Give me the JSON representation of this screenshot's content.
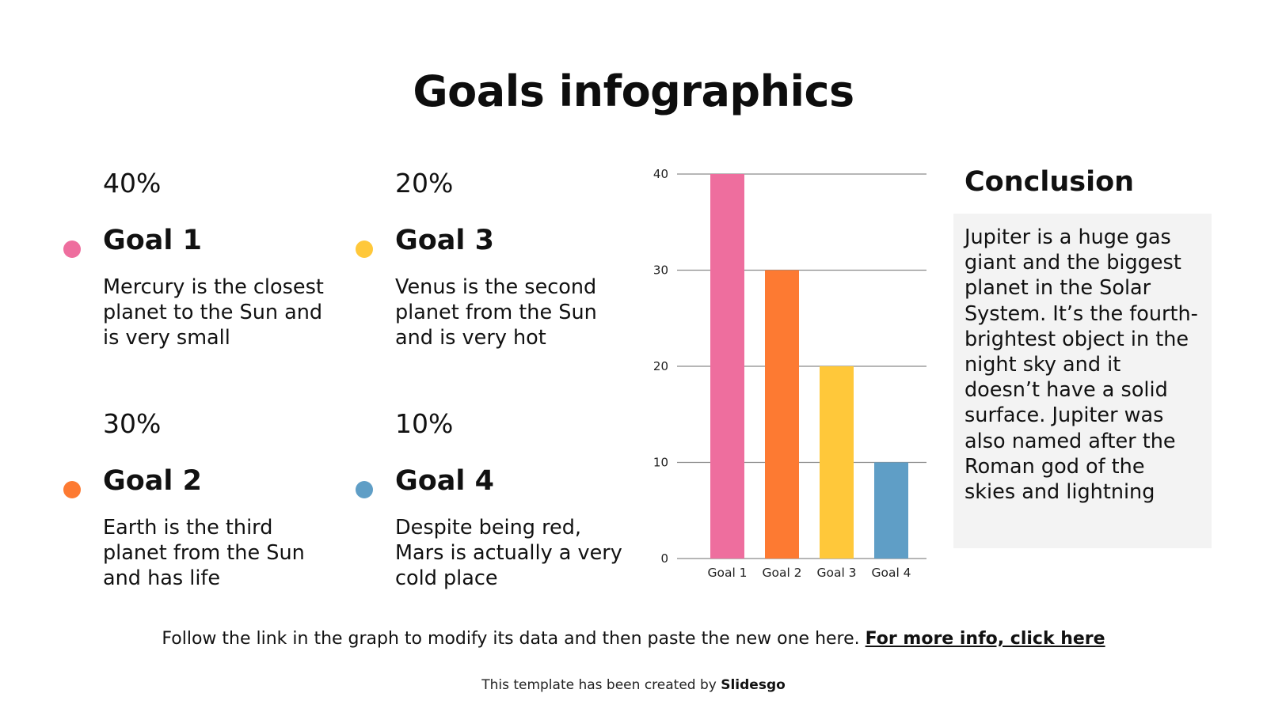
{
  "title": "Goals infographics",
  "goals": [
    {
      "percent": "40%",
      "name": "Goal 1",
      "description": "Mercury is the closest planet to the Sun and is very small",
      "color": "#EE6E9E"
    },
    {
      "percent": "30%",
      "name": "Goal 2",
      "description": "Earth is the third planet from the Sun and has life",
      "color": "#FD7A32"
    },
    {
      "percent": "20%",
      "name": "Goal 3",
      "description": "Venus is the second planet from the Sun and is very hot",
      "color": "#FFC83A"
    },
    {
      "percent": "10%",
      "name": "Goal 4",
      "description": "Despite being red, Mars is actually a very cold place",
      "color": "#5F9EC6"
    }
  ],
  "conclusion": {
    "title": "Conclusion",
    "text": "Jupiter is a huge gas giant and the biggest planet in the Solar System. It’s the fourth-brightest object in the night sky and it doesn’t have a solid surface. Jupiter was also named after the Roman god of the skies and lightning"
  },
  "footer": {
    "note": "Follow the link in the graph to modify its data and then paste the new one here.",
    "link_label": "For more info, click here",
    "credit_prefix": "This template has been created by",
    "credit_brand": "Slidesgo"
  },
  "chart_data": {
    "type": "bar",
    "categories": [
      "Goal 1",
      "Goal 2",
      "Goal 3",
      "Goal 4"
    ],
    "values": [
      40,
      30,
      20,
      10
    ],
    "colors": [
      "#EE6E9E",
      "#FD7A32",
      "#FFC83A",
      "#5F9EC6"
    ],
    "ylim": [
      0,
      40
    ],
    "yticks": [
      0,
      10,
      20,
      30,
      40
    ],
    "grid": true,
    "legend": "none"
  }
}
